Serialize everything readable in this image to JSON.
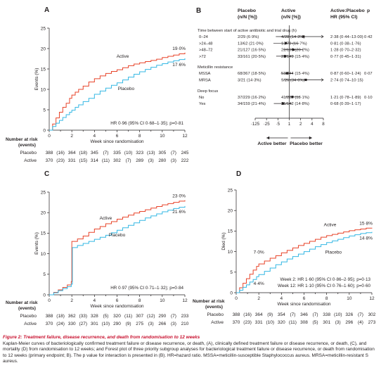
{
  "panels": [
    {
      "letter": "A",
      "ylabel": "Events (%)",
      "xlabel": "Week since randomisation",
      "xticks": [
        "0",
        "2",
        "4",
        "6",
        "8",
        "10",
        "12"
      ],
      "yticks": [
        "0",
        "5",
        "10",
        "15",
        "20",
        "25"
      ],
      "end_active": "19·0%",
      "end_placebo": "17·6%",
      "lbl_active": "Active",
      "lbl_placebo": "Placebo",
      "hr": "HR 0·96 (95% CI 0·68–1·35); p=0·81",
      "risk_title": [
        "Number at risk",
        "(events)"
      ],
      "risk": [
        {
          "group": "Placebo",
          "vals": [
            "388",
            "(16)",
            "364",
            "(18)",
            "345",
            "(7)",
            "335",
            "(10)",
            "323",
            "(13)",
            "305",
            "(7)",
            "245"
          ]
        },
        {
          "group": "Active",
          "vals": [
            "370",
            "(23)",
            "331",
            "(15)",
            "314",
            "(11)",
            "302",
            "(7)",
            "289",
            "(3)",
            "280",
            "(3)",
            "222"
          ]
        }
      ]
    },
    {
      "letter": "C",
      "ylabel": "Events (%)",
      "xlabel": "Week since randomisation",
      "xticks": [
        "0",
        "2",
        "4",
        "6",
        "8",
        "10",
        "12"
      ],
      "yticks": [
        "0",
        "5",
        "10",
        "15",
        "20",
        "25"
      ],
      "end_active": "23·0%",
      "end_placebo": "21·6%",
      "lbl_active": "Active",
      "lbl_placebo": "Placebo",
      "hr": "HR 0·97 (95% CI 0·71–1·32); p=0·84",
      "risk_title": [
        "Number at risk",
        "(events)"
      ],
      "risk": [
        {
          "group": "Placebo",
          "vals": [
            "388",
            "(18)",
            "362",
            "(33)",
            "328",
            "(5)",
            "320",
            "(11)",
            "307",
            "(12)",
            "290",
            "(7)",
            "233"
          ]
        },
        {
          "group": "Active",
          "vals": [
            "370",
            "(24)",
            "330",
            "(27)",
            "301",
            "(10)",
            "290",
            "(9)",
            "275",
            "(3)",
            "266",
            "(3)",
            "210"
          ]
        }
      ]
    },
    {
      "letter": "D",
      "ylabel": "Died (%)",
      "xlabel": "Week since randomisation",
      "xticks": [
        "0",
        "2",
        "4",
        "6",
        "8",
        "10",
        "12"
      ],
      "yticks": [
        "0",
        "5",
        "10",
        "15",
        "20",
        "25"
      ],
      "end_active": "15·8%",
      "end_placebo": "14·8%",
      "lbl_active": "Active",
      "lbl_placebo": "Placebo",
      "mid_active": "7·0%",
      "mid_placebo": "4·4%",
      "hr_lines": [
        "Week 2: HR 1·60 (95% CI 0·86–2·95); p=0·13",
        "Week 12: HR 1·10 (95% CI 0·76–1·60); p=0·60"
      ],
      "risk_title": [
        "Number at risk",
        "(events)"
      ],
      "risk": [
        {
          "group": "Placebo",
          "vals": [
            "388",
            "(16)",
            "364",
            "(9)",
            "354",
            "(7)",
            "346",
            "(7)",
            "338",
            "(10)",
            "326",
            "(7)",
            "302"
          ]
        },
        {
          "group": "Active",
          "vals": [
            "370",
            "(23)",
            "331",
            "(10)",
            "320",
            "(11)",
            "308",
            "(5)",
            "301",
            "(3)",
            "296",
            "(4)",
            "273"
          ]
        }
      ]
    }
  ],
  "forest": {
    "letter": "B",
    "head_placebo": [
      "Placebo",
      "(n/N [%])"
    ],
    "head_active": [
      "Active",
      "(n/N [%])"
    ],
    "head_hr": [
      "Active:Placebo",
      "HR (95% CI)"
    ],
    "head_p": "p",
    "groups": [
      {
        "title": "Time between start of active antibiotic and trial drug (h)",
        "p": "0·42",
        "rows": [
          {
            "label": "0–24",
            "placebo": "2/29 (6·9%)",
            "active": "4/28 (14·3%)",
            "hr": "2·38 (0·44–13·00)"
          },
          {
            "label": ">24–48",
            "placebo": "13/62 (21·0%)",
            "active": "13/78 (16·7%)",
            "hr": "0·81 (0·38–1·76)"
          },
          {
            "label": ">48–72",
            "placebo": "21/127 (16·5%)",
            "active": "22/109 (20·2%)",
            "hr": "1·28 (0·70–2·32)"
          },
          {
            "label": ">72",
            "placebo": "33/161 (20·5%)",
            "active": "23/149 (15·4%)",
            "hr": "0·77 (0·45–1·31)"
          }
        ]
      },
      {
        "title": "Meticillin resistance",
        "p": "0·07",
        "rows": [
          {
            "label": "MSSA",
            "placebo": "68/367 (18·5%)",
            "active": "53/344 (15·4%)",
            "hr": "0·87 (0·60–1·24)"
          },
          {
            "label": "MRSA",
            "placebo": "3/21 (14·3%)",
            "active": "9/26 (34·6%)",
            "hr": "2·74 (0·74–10·15)"
          }
        ]
      },
      {
        "title": "Deep focus",
        "p": "0·10",
        "rows": [
          {
            "label": "No",
            "placebo": "37/229 (16·2%)",
            "active": "41/227 (18·1%)",
            "hr": "1·21 (0·78–1·89)"
          },
          {
            "label": "Yes",
            "placebo": "34/159 (21·4%)",
            "active": "21/142 (14·8%)",
            "hr": "0·68 (0·39–1·17)"
          }
        ]
      }
    ],
    "axis_ticks": [
      "·125",
      "·25",
      "·5",
      "1",
      "2",
      "4",
      "8"
    ],
    "better_active": "Active better",
    "better_placebo": "Placebo better"
  },
  "caption": {
    "title": "Figure 2: Treatment failure, disease recurrence, and death from randomisation to 12 weeks",
    "body": "Kaplan-Meier curves of bacteriologically confirmed treatment failure or disease recurrence, or death, (A), clinically defined treatment failure or disease recurrence, or death, (C), and mortality (D) from randomisation to 12 weeks; and Forest plot of three priority subgroup analyses for bacteriological treatment failure or disease recurrence, or death from randomisation to 12 weeks (primary endpoint; B). The p value for interaction is presented in (B). HR=hazard ratio. MSSA=meticillin-susceptible Staphylococcus aureus. MRSA=meticillin-resistant S aureus."
  },
  "colors": {
    "active": "#e8442a",
    "placebo": "#35b8e4",
    "text": "#231f20",
    "axis": "#231f20"
  },
  "chart_data": [
    {
      "type": "line",
      "title": "A",
      "xlabel": "Week since randomisation",
      "ylabel": "Events (%)",
      "xlim": [
        0,
        12
      ],
      "ylim": [
        0,
        25
      ],
      "series": [
        {
          "name": "Active",
          "color": "#e8442a",
          "x": [
            0,
            0.3,
            0.6,
            0.9,
            1.2,
            1.5,
            1.8,
            2.0,
            2.3,
            2.6,
            3.0,
            3.5,
            4.0,
            4.5,
            5.0,
            5.5,
            6.0,
            6.5,
            7.0,
            7.5,
            8.0,
            8.5,
            9.0,
            9.5,
            10.0,
            10.5,
            11.0,
            11.5,
            12.0
          ],
          "y": [
            0,
            1.5,
            3.0,
            4.4,
            5.6,
            6.6,
            7.8,
            8.6,
            9.3,
            10.0,
            10.8,
            11.8,
            12.6,
            13.3,
            13.9,
            14.4,
            14.8,
            15.3,
            15.8,
            16.2,
            16.5,
            16.8,
            17.1,
            17.4,
            17.8,
            18.1,
            18.4,
            18.7,
            19.0
          ]
        },
        {
          "name": "Placebo",
          "color": "#35b8e4",
          "x": [
            0,
            0.3,
            0.6,
            0.9,
            1.2,
            1.5,
            1.8,
            2.0,
            2.3,
            2.6,
            3.0,
            3.5,
            4.0,
            4.5,
            5.0,
            5.5,
            6.0,
            6.5,
            7.0,
            7.5,
            8.0,
            8.5,
            9.0,
            9.5,
            10.0,
            10.5,
            11.0,
            11.5,
            12.0
          ],
          "y": [
            0,
            0.9,
            1.7,
            2.4,
            3.1,
            3.8,
            4.4,
            4.9,
            5.6,
            6.2,
            7.0,
            7.8,
            8.8,
            9.6,
            10.3,
            11.0,
            11.6,
            12.3,
            13.0,
            13.7,
            14.3,
            14.9,
            15.4,
            15.9,
            16.3,
            16.7,
            17.0,
            17.3,
            17.6
          ]
        }
      ],
      "annotations": [
        "19·0%",
        "17·6%",
        "HR 0·96 (95% CI 0·68–1·35); p=0·81"
      ]
    },
    {
      "type": "line",
      "title": "C",
      "xlabel": "Week since randomisation",
      "ylabel": "Events (%)",
      "xlim": [
        0,
        12
      ],
      "ylim": [
        0,
        25
      ],
      "series": [
        {
          "name": "Active",
          "color": "#e8442a",
          "x": [
            0,
            0.4,
            0.8,
            1.2,
            1.6,
            1.95,
            2.0,
            2.5,
            3.0,
            3.5,
            4.0,
            4.5,
            5.0,
            5.5,
            6.0,
            6.5,
            7.0,
            7.5,
            8.0,
            8.5,
            9.0,
            9.5,
            10.0,
            10.5,
            11.0,
            11.5,
            12.0
          ],
          "y": [
            0,
            0.6,
            1.2,
            1.8,
            2.4,
            3.2,
            13.0,
            13.6,
            14.3,
            15.2,
            16.0,
            16.6,
            17.3,
            17.8,
            18.4,
            18.9,
            19.4,
            19.9,
            20.3,
            20.7,
            21.1,
            21.5,
            21.9,
            22.2,
            22.5,
            22.8,
            23.0
          ]
        },
        {
          "name": "Placebo",
          "color": "#35b8e4",
          "x": [
            0,
            0.4,
            0.8,
            1.2,
            1.6,
            1.95,
            2.05,
            2.5,
            3.0,
            3.5,
            4.0,
            4.5,
            5.0,
            5.5,
            6.0,
            6.5,
            7.0,
            7.5,
            8.0,
            8.5,
            9.0,
            9.5,
            10.0,
            10.5,
            11.0,
            11.5,
            12.0
          ],
          "y": [
            0,
            0.5,
            1.0,
            1.5,
            2.0,
            2.6,
            11.5,
            12.0,
            12.5,
            13.0,
            13.5,
            14.0,
            14.5,
            15.1,
            15.7,
            16.3,
            16.9,
            17.5,
            18.1,
            18.7,
            19.2,
            19.7,
            20.2,
            20.6,
            21.0,
            21.3,
            21.6
          ]
        }
      ],
      "annotations": [
        "23·0%",
        "21·6%",
        "HR 0·97 (95% CI 0·71–1·32); p=0·84"
      ]
    },
    {
      "type": "line",
      "title": "D",
      "xlabel": "Week since randomisation",
      "ylabel": "Died (%)",
      "xlim": [
        0,
        12
      ],
      "ylim": [
        0,
        25
      ],
      "series": [
        {
          "name": "Active",
          "color": "#e8442a",
          "x": [
            0,
            0.3,
            0.6,
            0.9,
            1.2,
            1.5,
            1.8,
            2.0,
            2.5,
            3.0,
            3.5,
            4.0,
            4.5,
            5.0,
            5.5,
            6.0,
            6.5,
            7.0,
            7.5,
            8.0,
            8.5,
            9.0,
            9.5,
            10.0,
            10.5,
            11.0,
            11.5,
            12.0
          ],
          "y": [
            0,
            1.2,
            2.3,
            3.4,
            4.5,
            5.5,
            6.4,
            7.0,
            7.7,
            8.4,
            9.0,
            9.7,
            10.3,
            10.9,
            11.5,
            12.0,
            12.5,
            13.0,
            13.5,
            13.9,
            14.2,
            14.5,
            14.8,
            15.1,
            15.3,
            15.5,
            15.7,
            15.8
          ]
        },
        {
          "name": "Placebo",
          "color": "#35b8e4",
          "x": [
            0,
            0.3,
            0.6,
            0.9,
            1.2,
            1.5,
            1.8,
            2.0,
            2.5,
            3.0,
            3.5,
            4.0,
            4.5,
            5.0,
            5.5,
            6.0,
            6.5,
            7.0,
            7.5,
            8.0,
            8.5,
            9.0,
            9.5,
            10.0,
            10.5,
            11.0,
            11.5,
            12.0
          ],
          "y": [
            0,
            0.6,
            1.3,
            1.9,
            2.6,
            3.2,
            3.9,
            4.4,
            5.2,
            6.0,
            6.8,
            7.5,
            8.2,
            8.8,
            9.4,
            10.0,
            10.6,
            11.2,
            11.7,
            12.2,
            12.6,
            13.0,
            13.4,
            13.8,
            14.1,
            14.4,
            14.6,
            14.8
          ]
        }
      ],
      "annotations": [
        "15·8%",
        "14·8%",
        "7·0%",
        "4·4%",
        "Week 2: HR 1·60 (95% CI 0·86–2·95); p=0·13",
        "Week 12: HR 1·10 (95% CI 0·76–1·60); p=0·60"
      ]
    },
    {
      "type": "forest",
      "title": "B",
      "scale": "log",
      "xlim": [
        0.125,
        8
      ],
      "rows": [
        {
          "label": "0–24",
          "hr": 2.38,
          "lo": 0.44,
          "hi": 13.0
        },
        {
          "label": ">24–48",
          "hr": 0.81,
          "lo": 0.38,
          "hi": 1.76
        },
        {
          "label": ">48–72",
          "hr": 1.28,
          "lo": 0.7,
          "hi": 2.32
        },
        {
          "label": ">72",
          "hr": 0.77,
          "lo": 0.45,
          "hi": 1.31
        },
        {
          "label": "MSSA",
          "hr": 0.87,
          "lo": 0.6,
          "hi": 1.24
        },
        {
          "label": "MRSA",
          "hr": 2.74,
          "lo": 0.74,
          "hi": 10.15
        },
        {
          "label": "No",
          "hr": 1.21,
          "lo": 0.78,
          "hi": 1.89
        },
        {
          "label": "Yes",
          "hr": 0.68,
          "lo": 0.39,
          "hi": 1.17
        }
      ]
    }
  ]
}
